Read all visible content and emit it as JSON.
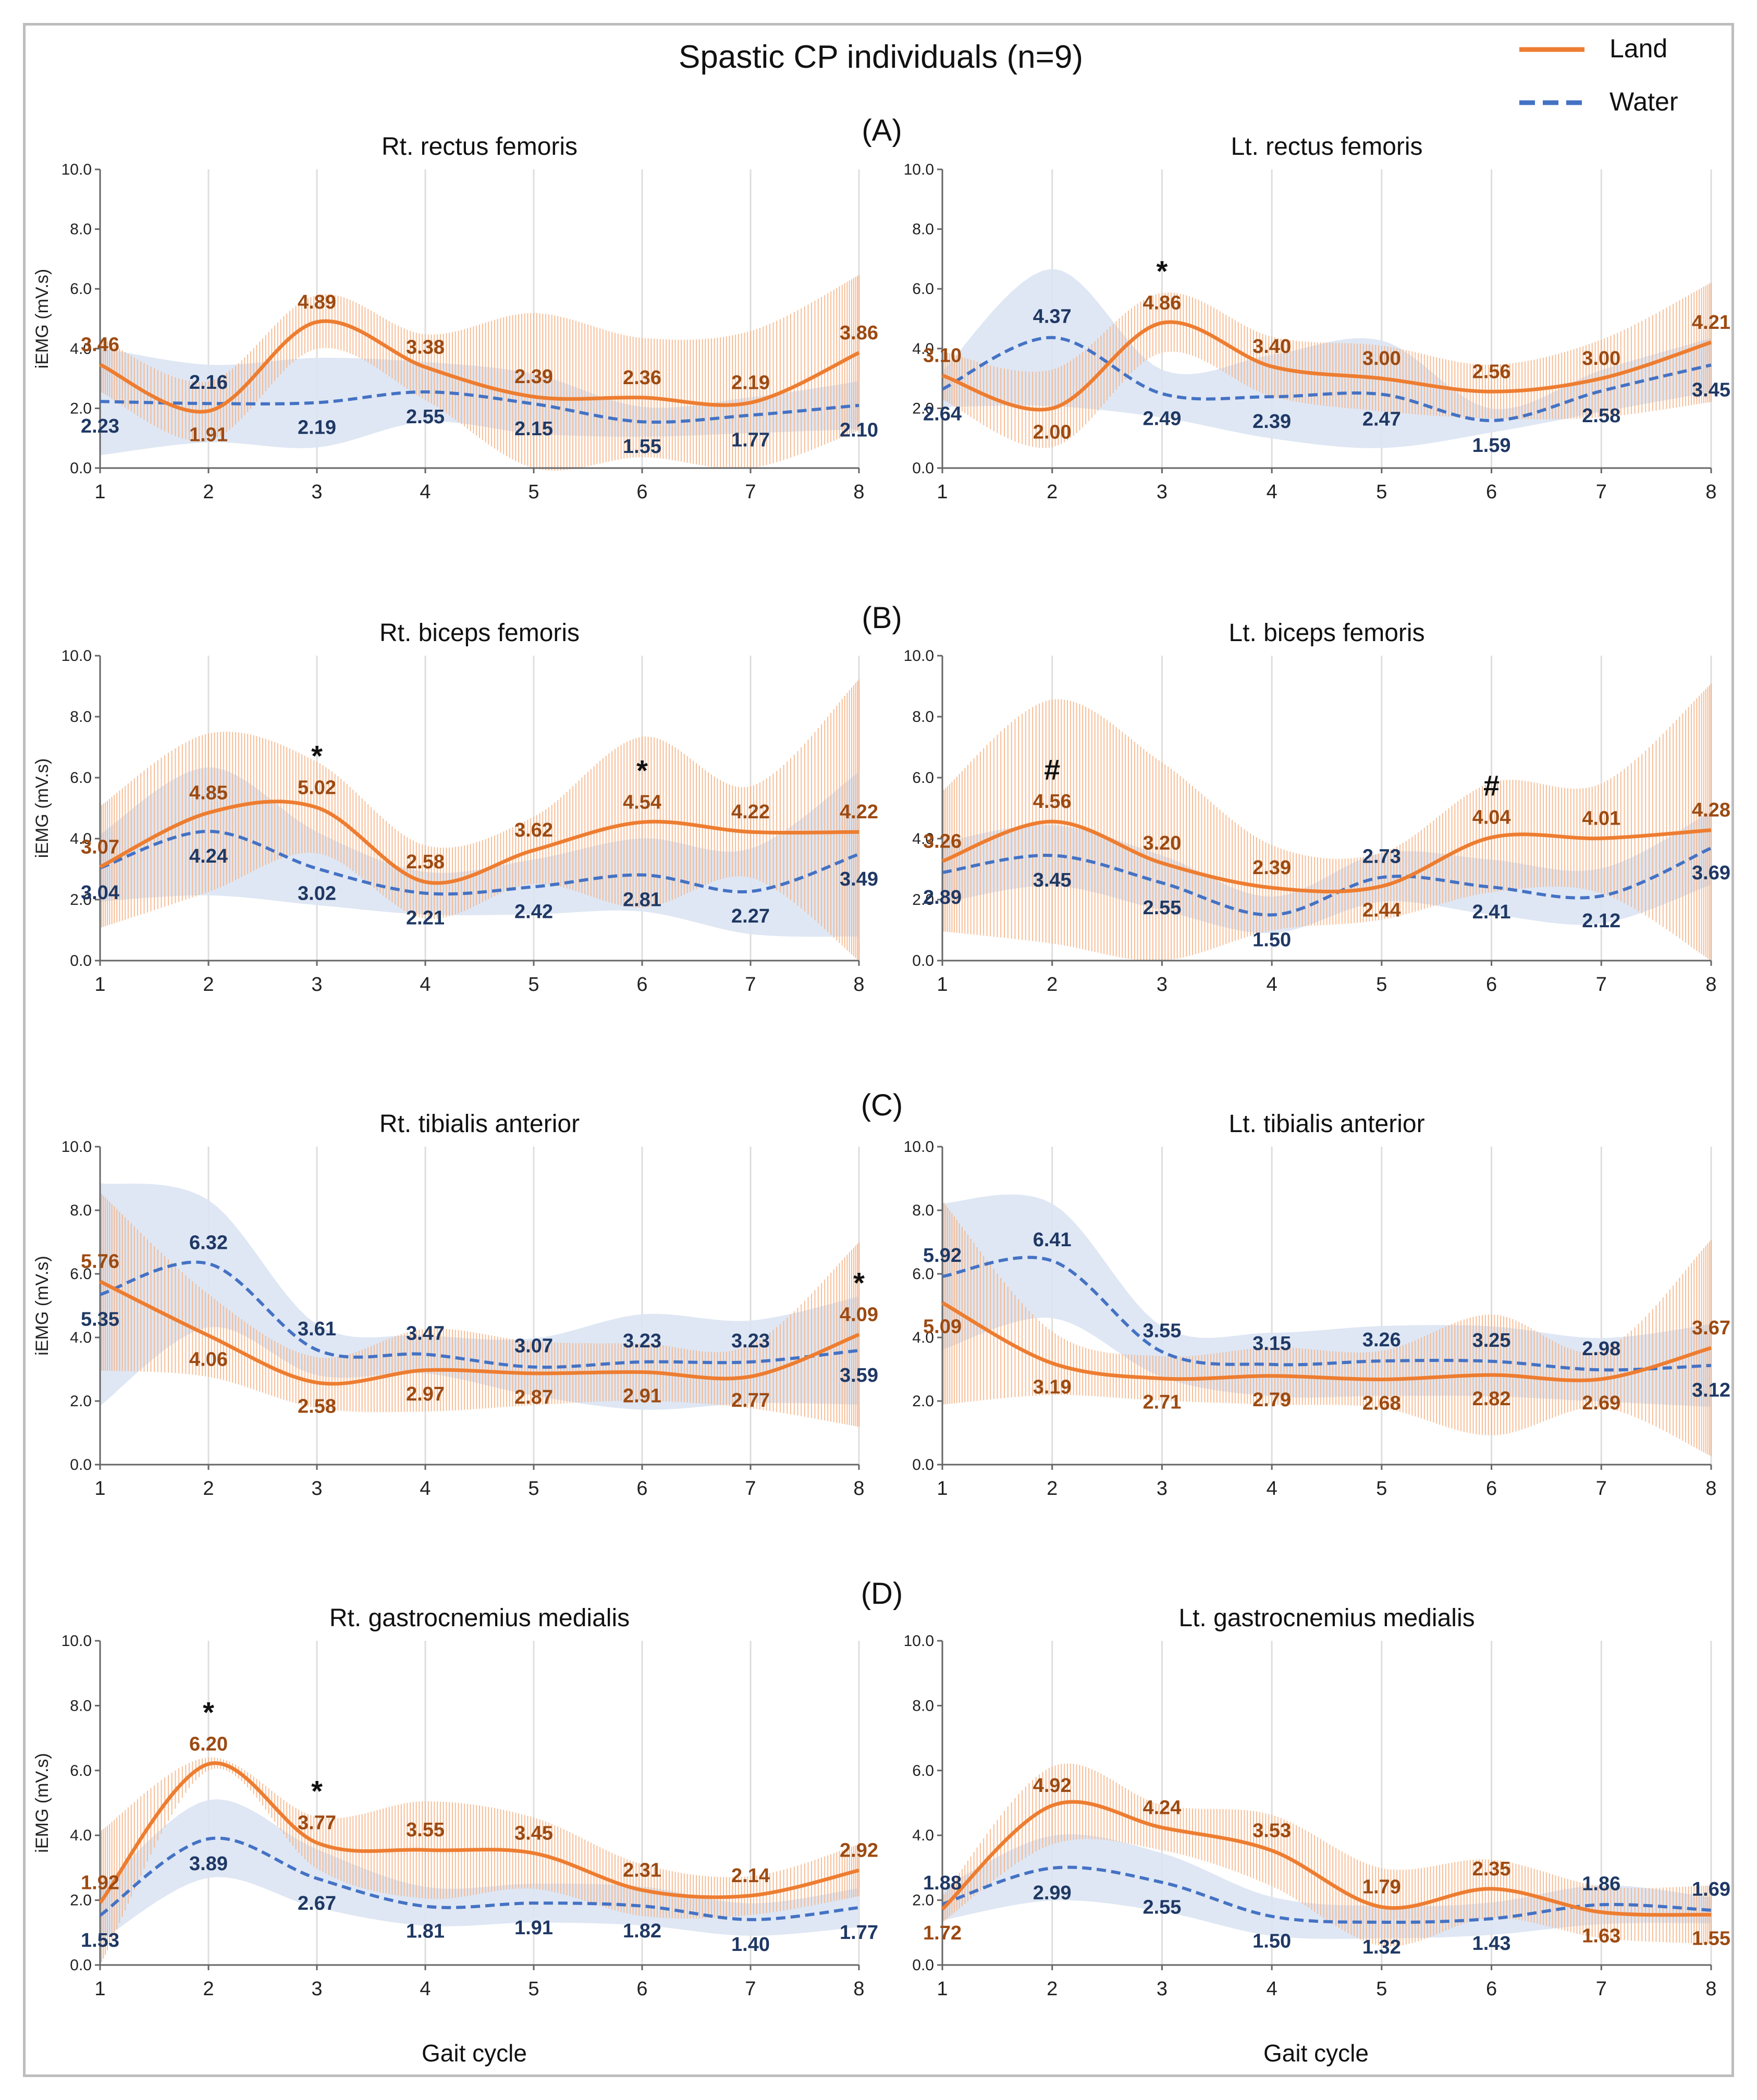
{
  "figure": {
    "title": "Spastic CP individuals (n=9)",
    "xlabel": "Gait cycle",
    "legend": {
      "land": "Land",
      "water": "Water"
    },
    "sections": [
      "(A)",
      "(B)",
      "(C)",
      "(D)"
    ],
    "colors": {
      "land": "#ED7D31",
      "land_label": "#9C4A12",
      "water": "#4472C4",
      "water_label": "#1F3864",
      "water_band": "#DCE4F3",
      "land_band": "#F4B183"
    }
  },
  "chart_data": [
    {
      "type": "line",
      "title": "Rt. rectus femoris",
      "ylabel": "iEMG (mV.s)",
      "xlabel": "",
      "x": [
        1,
        2,
        3,
        4,
        5,
        6,
        7,
        8
      ],
      "ylim": [
        0,
        10
      ],
      "series": [
        {
          "name": "Land",
          "values": [
            3.46,
            1.91,
            4.89,
            3.38,
            2.39,
            2.36,
            2.19,
            3.86
          ],
          "sd": [
            0.9,
            1.0,
            0.9,
            1.1,
            2.8,
            2.0,
            2.4,
            2.6
          ]
        },
        {
          "name": "Water",
          "values": [
            2.23,
            2.16,
            2.19,
            2.55,
            2.15,
            1.55,
            1.77,
            2.1
          ],
          "sd": [
            1.8,
            1.3,
            1.5,
            1.0,
            1.0,
            0.5,
            0.6,
            0.8
          ]
        }
      ],
      "annotations": []
    },
    {
      "type": "line",
      "title": "Lt. rectus femoris",
      "ylabel": "",
      "xlabel": "",
      "x": [
        1,
        2,
        3,
        4,
        5,
        6,
        7,
        8
      ],
      "ylim": [
        0,
        10
      ],
      "series": [
        {
          "name": "Land",
          "values": [
            3.1,
            2.0,
            4.86,
            3.4,
            3.0,
            2.56,
            3.0,
            4.21
          ],
          "sd": [
            0.8,
            1.3,
            1.0,
            1.0,
            1.1,
            0.9,
            1.3,
            2.0
          ]
        },
        {
          "name": "Water",
          "values": [
            2.64,
            4.37,
            2.49,
            2.39,
            2.47,
            1.59,
            2.58,
            3.45
          ],
          "sd": [
            0.6,
            2.3,
            0.8,
            1.4,
            1.8,
            0.4,
            0.7,
            0.9
          ]
        }
      ],
      "annotations": [
        {
          "x": 3,
          "label": "*"
        }
      ]
    },
    {
      "type": "line",
      "title": "Rt. biceps femoris",
      "ylabel": "iEMG (mV.s)",
      "xlabel": "",
      "x": [
        1,
        2,
        3,
        4,
        5,
        6,
        7,
        8
      ],
      "ylim": [
        0,
        10
      ],
      "series": [
        {
          "name": "Land",
          "values": [
            3.07,
            4.85,
            5.02,
            2.58,
            3.62,
            4.54,
            4.22,
            4.22
          ],
          "sd": [
            2.0,
            2.6,
            1.5,
            1.2,
            1.1,
            2.8,
            1.5,
            5.0
          ]
        },
        {
          "name": "Water",
          "values": [
            3.04,
            4.24,
            3.02,
            2.21,
            2.42,
            2.81,
            2.27,
            3.49
          ],
          "sd": [
            1.1,
            2.1,
            1.2,
            0.7,
            0.9,
            1.2,
            1.4,
            2.7
          ]
        }
      ],
      "annotations": [
        {
          "x": 3,
          "label": "*"
        },
        {
          "x": 6,
          "label": "*"
        }
      ]
    },
    {
      "type": "line",
      "title": "Lt. biceps femoris",
      "ylabel": "",
      "xlabel": "",
      "x": [
        1,
        2,
        3,
        4,
        5,
        6,
        7,
        8
      ],
      "ylim": [
        0,
        10
      ],
      "series": [
        {
          "name": "Land",
          "values": [
            3.26,
            4.56,
            3.2,
            2.39,
            2.44,
            4.04,
            4.01,
            4.28
          ],
          "sd": [
            2.3,
            4.0,
            3.3,
            1.4,
            1.1,
            1.8,
            1.8,
            4.8
          ]
        },
        {
          "name": "Water",
          "values": [
            2.89,
            3.45,
            2.55,
            1.5,
            2.73,
            2.41,
            2.12,
            3.69
          ],
          "sd": [
            1.0,
            1.0,
            0.9,
            0.6,
            0.8,
            0.9,
            0.9,
            1.2
          ]
        }
      ],
      "annotations": [
        {
          "x": 2,
          "label": "#"
        },
        {
          "x": 6,
          "label": "#"
        }
      ]
    },
    {
      "type": "line",
      "title": "Rt. tibialis anterior",
      "ylabel": "iEMG (mV.s)",
      "xlabel": "",
      "x": [
        1,
        2,
        3,
        4,
        5,
        6,
        7,
        8
      ],
      "ylim": [
        0,
        10
      ],
      "series": [
        {
          "name": "Land",
          "values": [
            5.76,
            4.06,
            2.58,
            2.97,
            2.87,
            2.91,
            2.77,
            4.09
          ],
          "sd": [
            2.8,
            1.3,
            0.8,
            1.3,
            1.0,
            0.9,
            1.0,
            2.9
          ]
        },
        {
          "name": "Water",
          "values": [
            5.35,
            6.32,
            3.61,
            3.47,
            3.07,
            3.23,
            3.23,
            3.59
          ],
          "sd": [
            3.5,
            2.0,
            0.8,
            0.6,
            0.9,
            1.5,
            1.3,
            1.7
          ]
        }
      ],
      "annotations": [
        {
          "x": 8,
          "label": "*"
        }
      ]
    },
    {
      "type": "line",
      "title": "Lt. tibialis anterior",
      "ylabel": "",
      "xlabel": "",
      "x": [
        1,
        2,
        3,
        4,
        5,
        6,
        7,
        8
      ],
      "ylim": [
        0,
        10
      ],
      "series": [
        {
          "name": "Land",
          "values": [
            5.09,
            3.19,
            2.71,
            2.79,
            2.68,
            2.82,
            2.69,
            3.67
          ],
          "sd": [
            3.2,
            1.0,
            0.7,
            0.9,
            0.9,
            1.9,
            0.9,
            3.4
          ]
        },
        {
          "name": "Water",
          "values": [
            5.92,
            6.41,
            3.55,
            3.15,
            3.26,
            3.25,
            2.98,
            3.12
          ],
          "sd": [
            2.3,
            1.8,
            0.8,
            1.0,
            1.1,
            1.1,
            1.0,
            1.3
          ]
        }
      ],
      "annotations": []
    },
    {
      "type": "line",
      "title": "Rt. gastrocnemius medialis",
      "ylabel": "iEMG (mV.s)",
      "xlabel": "Gait cycle",
      "x": [
        1,
        2,
        3,
        4,
        5,
        6,
        7,
        8
      ],
      "ylim": [
        0,
        10
      ],
      "series": [
        {
          "name": "Land",
          "values": [
            1.92,
            6.2,
            3.77,
            3.55,
            3.45,
            2.31,
            2.14,
            2.92
          ],
          "sd": [
            2.2,
            0.2,
            0.8,
            1.5,
            1.1,
            0.8,
            0.6,
            0.8
          ]
        },
        {
          "name": "Water",
          "values": [
            1.53,
            3.89,
            2.67,
            1.81,
            1.91,
            1.82,
            1.4,
            1.77
          ],
          "sd": [
            0.8,
            1.2,
            0.9,
            0.6,
            0.6,
            0.6,
            0.5,
            0.6
          ]
        }
      ],
      "annotations": [
        {
          "x": 2,
          "label": "*"
        },
        {
          "x": 3,
          "label": "*"
        }
      ]
    },
    {
      "type": "line",
      "title": "Lt. gastrocnemius medialis",
      "ylabel": "",
      "xlabel": "Gait cycle",
      "x": [
        1,
        2,
        3,
        4,
        5,
        6,
        7,
        8
      ],
      "ylim": [
        0,
        10
      ],
      "series": [
        {
          "name": "Land",
          "values": [
            1.72,
            4.92,
            4.24,
            3.53,
            1.79,
            2.35,
            1.63,
            1.55
          ],
          "sd": [
            0.4,
            1.2,
            0.7,
            1.1,
            1.2,
            0.9,
            0.8,
            0.9
          ]
        },
        {
          "name": "Water",
          "values": [
            1.88,
            2.99,
            2.55,
            1.5,
            1.32,
            1.43,
            1.86,
            1.69
          ],
          "sd": [
            0.5,
            1.0,
            0.9,
            0.6,
            0.5,
            0.5,
            0.6,
            0.4
          ]
        }
      ],
      "annotations": []
    }
  ]
}
